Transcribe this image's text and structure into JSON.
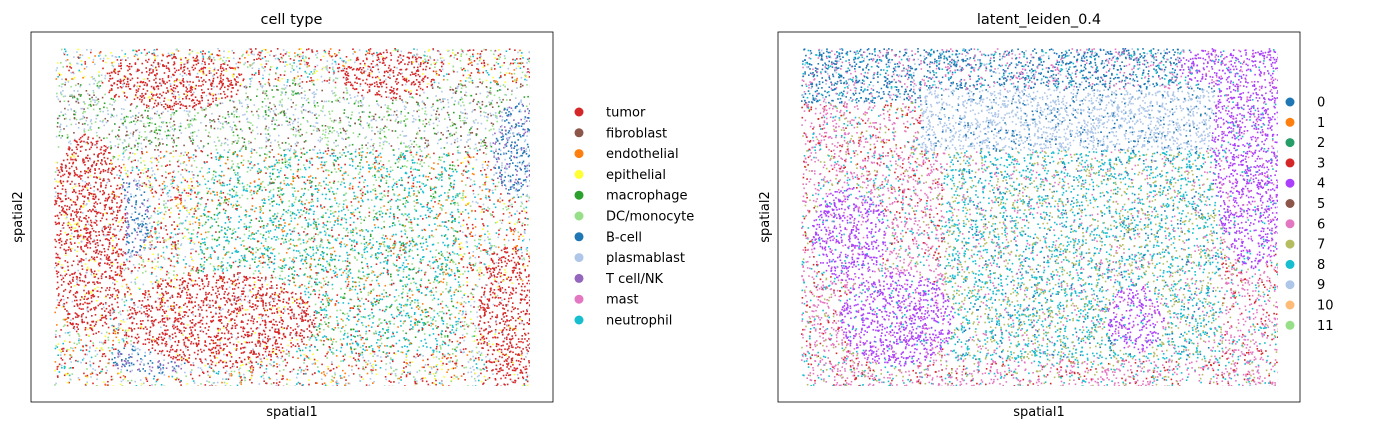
{
  "chart_data": [
    {
      "type": "scatter",
      "title": "cell type",
      "xlabel": "spatial1",
      "ylabel": "spatial2",
      "grid": false,
      "legend_position": "right",
      "categories": [
        {
          "name": "tumor",
          "color": "#d62728"
        },
        {
          "name": "fibroblast",
          "color": "#8c564b"
        },
        {
          "name": "endothelial",
          "color": "#ff7f0e"
        },
        {
          "name": "epithelial",
          "color": "#ffff33"
        },
        {
          "name": "macrophage",
          "color": "#2ca02c"
        },
        {
          "name": "DC/monocyte",
          "color": "#98df8a"
        },
        {
          "name": "B-cell",
          "color": "#1f77b4"
        },
        {
          "name": "plasmablast",
          "color": "#aec7e8"
        },
        {
          "name": "T cell/NK",
          "color": "#9467bd"
        },
        {
          "name": "mast",
          "color": "#e377c2"
        },
        {
          "name": "neutrophil",
          "color": "#17becf"
        }
      ]
    },
    {
      "type": "scatter",
      "title": "latent_leiden_0.4",
      "xlabel": "spatial1",
      "ylabel": "spatial2",
      "grid": false,
      "legend_position": "right",
      "categories": [
        {
          "name": "0",
          "color": "#1f77b4"
        },
        {
          "name": "1",
          "color": "#ff7f0e"
        },
        {
          "name": "2",
          "color": "#279e68"
        },
        {
          "name": "3",
          "color": "#d62728"
        },
        {
          "name": "4",
          "color": "#aa40fc"
        },
        {
          "name": "5",
          "color": "#8c564b"
        },
        {
          "name": "6",
          "color": "#e377c2"
        },
        {
          "name": "7",
          "color": "#b5bd61"
        },
        {
          "name": "8",
          "color": "#17becf"
        },
        {
          "name": "9",
          "color": "#aec7e8"
        },
        {
          "name": "10",
          "color": "#ffbb78"
        },
        {
          "name": "11",
          "color": "#98df8a"
        }
      ]
    }
  ]
}
